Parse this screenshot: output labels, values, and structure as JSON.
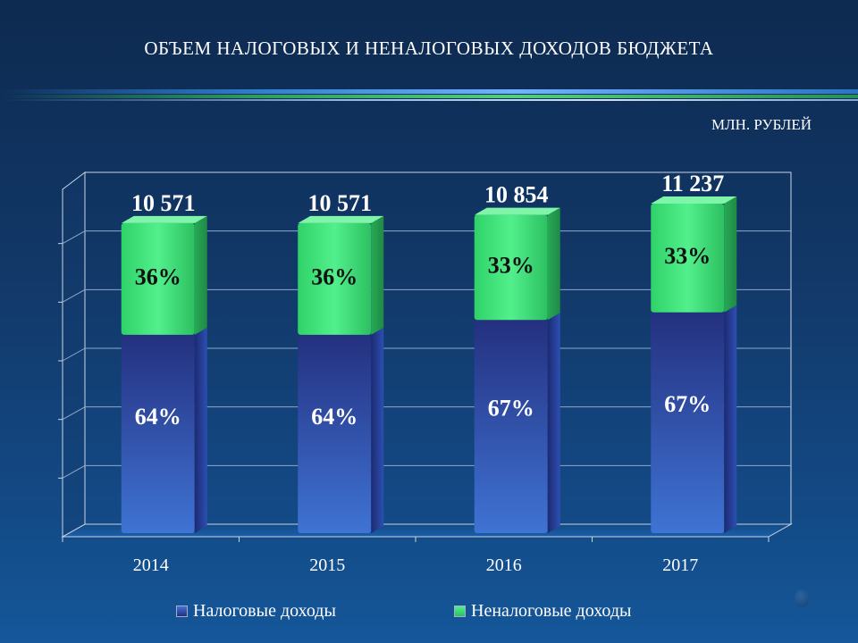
{
  "slide": {
    "title": "ОБЪЕМ НАЛОГОВЫХ И НЕНАЛОГОВЫХ ДОХОДОВ БЮДЖЕТА",
    "unit": "МЛН. РУБЛЕЙ"
  },
  "colors": {
    "tax": "#2b3fa0",
    "nontax": "#3fe07a",
    "background": "#12396a"
  },
  "chart_data": {
    "type": "bar",
    "stacked": true,
    "categories": [
      "2014",
      "2015",
      "2016",
      "2017"
    ],
    "totals": [
      10571,
      10571,
      10854,
      11237
    ],
    "total_labels": [
      "10 571",
      "10 571",
      "10 854",
      "11 237"
    ],
    "series": [
      {
        "name": "Налоговые доходы",
        "values": [
          6765,
          6765,
          7272,
          7529
        ],
        "share_labels": [
          "64%",
          "64%",
          "67%",
          "67%"
        ]
      },
      {
        "name": "Неналоговые доходы",
        "values": [
          3806,
          3806,
          3582,
          3708
        ],
        "share_labels": [
          "36%",
          "36%",
          "33%",
          "33%"
        ]
      }
    ],
    "ylim": [
      0,
      12000
    ],
    "grid": true,
    "legend_position": "bottom"
  }
}
